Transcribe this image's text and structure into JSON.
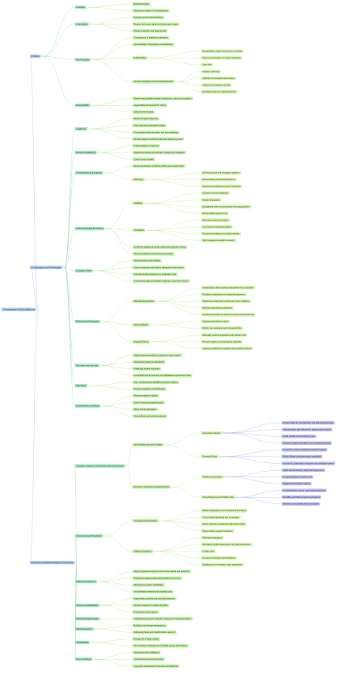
{
  "root": {
    "label": "Understanding Artificial Intelligence",
    "children": [
      {
        "label": "AI Ethics",
        "children": [
          {
            "label": "Overview",
            "children": [
              {
                "label": "Ethical principles"
              },
              {
                "label": "Why ethics matters in AI development"
              }
            ]
          },
          {
            "label": "Core Values",
            "children": [
              {
                "label": "Fairness and non-discrimination"
              },
              {
                "label": "Respect for human rights and democratic values"
              },
              {
                "label": "Privacy protection and data security"
              }
            ]
          },
          {
            "label": "Key Principles",
            "children": [
              {
                "label": "Transparency in algorithmic decisions"
              },
              {
                "label": "Accountability of developers and deployers"
              },
              {
                "label": "Explainability",
                "children": [
                  {
                    "label": "Interpretable models and post-hoc methods"
                  },
                  {
                    "label": "Clear communication of system limitations"
                  },
                  {
                    "label": "User trust"
                  }
                ]
              },
              {
                "label": "Human Oversight and Control Mechanisms",
                "children": [
                  {
                    "label": "Human in the loop"
                  },
                  {
                    "label": "Override and shutdown procedures"
                  },
                  {
                    "label": "Audits and compliance checks"
                  },
                  {
                    "label": "Escalation paths for critical decisions"
                  }
                ]
              }
            ]
          },
          {
            "label": "Responsibility",
            "children": [
              {
                "label": "Shared responsibility between developers, users and regulators"
              },
              {
                "label": "Legal liability frameworks for harms"
              },
              {
                "label": "Ethical review boards"
              }
            ]
          }
        ]
      },
      {
        "label": "AI Applications and Technologies",
        "children": [
          {
            "label": "Healthcare",
            "children": [
              {
                "label": "Medical imaging diagnosis"
              },
              {
                "label": "Drug discovery and protein folding"
              },
              {
                "label": "Personalized treatment plans and care pathways"
              },
              {
                "label": "Remote patient monitoring and early warning systems"
              }
            ]
          },
          {
            "label": "Finance and Banking",
            "children": [
              {
                "label": "Fraud detection in real time"
              },
              {
                "label": "Algorithmic trading and portfolio management strategies"
              },
              {
                "label": "Credit scoring models"
              }
            ]
          },
          {
            "label": "Transportation and Logistics",
            "children": [
              {
                "label": "Route optimization for delivery fleets and supply chains"
              },
              {
                "label": "Autonomy",
                "children": [
                  {
                    "label": "Self-driving cars and perception systems"
                  },
                  {
                    "label": "Drone delivery and aerial inspection"
                  },
                  {
                    "label": "Autonomous shipping and port operations"
                  }
                ]
              }
            ]
          },
          {
            "label": "Natural Language Processing",
            "children": [
              {
                "label": "Chatbots",
                "children": [
                  {
                    "label": "Customer service assistants"
                  },
                  {
                    "label": "Virtual companions"
                  },
                  {
                    "label": "Educational tutors and interactive learning platforms"
                  },
                  {
                    "label": "Mental health support tools"
                  }
                ]
              },
              {
                "label": "Translation",
                "children": [
                  {
                    "label": "Real-time speech translation"
                  },
                  {
                    "label": "Low-resource language support"
                  },
                  {
                    "label": "Document localization for global markets"
                  },
                  {
                    "label": "Sign language recognition research"
                  }
                ]
              },
              {
                "label": "Sentiment analysis of social media and customer reviews"
              },
              {
                "label": "Text summarization and content generation"
              }
            ]
          },
          {
            "label": "Computer Vision",
            "children": [
              {
                "label": "Object detection and tracking"
              },
              {
                "label": "Facial recognition with privacy safeguards and consent"
              },
              {
                "label": "Industrial quality inspection on production lines"
              },
              {
                "label": "Augmented reality and spatial mapping in consumer devices"
              }
            ]
          },
          {
            "label": "Robotics and Automation",
            "children": [
              {
                "label": "Manufacturing Robots",
                "children": [
                  {
                    "label": "Collaborative robots working alongside human operators"
                  },
                  {
                    "label": "Predictive maintenance of industrial equipment"
                  },
                  {
                    "label": "Warehouse picking and sorting with vision guidance"
                  },
                  {
                    "label": "Welding and painting automation"
                  },
                  {
                    "label": "Precision assembly of electronics and small components"
                  }
                ]
              },
              {
                "label": "Service Robots",
                "children": [
                  {
                    "label": "Cleaning and delivery robots"
                  },
                  {
                    "label": "Elderly care assistants and companionship"
                  }
                ]
              },
              {
                "label": "Surgical Robots",
                "children": [
                  {
                    "label": "Minimally invasive procedures with robotic arms"
                  },
                  {
                    "label": "Remote surgery over high-speed networks"
                  },
                  {
                    "label": "Training simulators for surgeons and medical students"
                  }
                ]
              }
            ]
          },
          {
            "label": "Education and Learning",
            "children": [
              {
                "label": "Adaptive learning platforms tailored to each student"
              },
              {
                "label": "Automated grading and feedback"
              },
              {
                "label": "Predicting student outcomes"
              },
              {
                "label": "Accessible tools for learners with disabilities and diverse needs"
              }
            ]
          },
          {
            "label": "Agriculture",
            "children": [
              {
                "label": "Crop monitoring with satellite and drone imagery"
              },
              {
                "label": "Precision irrigation and fertilization"
              }
            ]
          },
          {
            "label": "Entertainment and Media",
            "children": [
              {
                "label": "Recommendation engines"
              },
              {
                "label": "Game AI and procedural content"
              },
              {
                "label": "Music and art generation"
              },
              {
                "label": "Visual effects and virtual production"
              }
            ]
          }
        ]
      },
      {
        "label": "The Future of Artificial Intelligence and Society",
        "children": [
          {
            "label": "Long-term Impact on Employment and the Economy",
            "children": [
              {
                "label": "Job Displacement and Creation",
                "children": [
                  {
                    "label": "Automation Sectors",
                    "children": [
                      {
                        "label": "Routine tasks in manufacturing and administrative work"
                      },
                      {
                        "label": "Transportation jobs affected by autonomous vehicles"
                      },
                      {
                        "label": "Retail checkout and inventory roles"
                      },
                      {
                        "label": "Customer support handled by conversational agents"
                      }
                    ]
                  },
                  {
                    "label": "Emerging Roles",
                    "children": [
                      {
                        "label": "AI trainers, prompt engineers and data curators"
                      },
                      {
                        "label": "Ethics officers and governance specialists"
                      },
                      {
                        "label": "Human-AI collaboration designers and workflow experts"
                      }
                    ]
                  }
                ]
              },
              {
                "label": "Economic Inequality and Redistribution",
                "children": [
                  {
                    "label": "Wealth Concentration",
                    "children": [
                      {
                        "label": "Gains accumulating in large technology firms"
                      },
                      {
                        "label": "Regional divides in access to AI"
                      },
                      {
                        "label": "Digital divide between nations"
                      }
                    ]
                  },
                  {
                    "label": "Policy Responses and Safety Nets",
                    "children": [
                      {
                        "label": "Universal basic income experiments and pilots"
                      },
                      {
                        "label": "Reskilling and lifelong learning programs"
                      },
                      {
                        "label": "Taxation of automated labor and capital"
                      }
                    ]
                  }
                ]
              }
            ]
          },
          {
            "label": "Governance and Regulation",
            "children": [
              {
                "label": "International Frameworks",
                "children": [
                  {
                    "label": "Global cooperation on AI standards and treaties"
                  },
                  {
                    "label": "Cross-border data flows and sovereignty"
                  },
                  {
                    "label": "Export controls on advanced chips and models"
                  },
                  {
                    "label": "Shared safety research initiatives"
                  }
                ]
              },
              {
                "label": "National Legislation",
                "children": [
                  {
                    "label": "Risk-based regulation"
                  },
                  {
                    "label": "Mandatory impact assessments for high-risk systems"
                  },
                  {
                    "label": "Liability rules"
                  },
                  {
                    "label": "Consumer protection and disclosure"
                  },
                  {
                    "label": "Sandboxes for innovation under supervision"
                  }
                ]
              }
            ]
          },
          {
            "label": "Safety and Alignment",
            "children": [
              {
                "label": "Aligning advanced systems with human values and intentions"
              },
              {
                "label": "Robustness against adversarial attacks and misuse"
              },
              {
                "label": "Monitoring emergent capabilities"
              },
              {
                "label": "Interpretability research and auditing tools"
              }
            ]
          },
          {
            "label": "Human-AI Collaboration",
            "children": [
              {
                "label": "Augmenting creativity and scientific discovery"
              },
              {
                "label": "Decision support in complex domains"
              },
              {
                "label": "Preserving human agency"
              }
            ]
          },
          {
            "label": "Scientific Breakthroughs",
            "children": [
              {
                "label": "Accelerating research in physics, biology and materials science"
              }
            ]
          },
          {
            "label": "Public Perception",
            "children": [
              {
                "label": "Building trust through transparency"
              },
              {
                "label": "Addressing fears and misinformation about AI"
              }
            ]
          },
          {
            "label": "Sustainability",
            "children": [
              {
                "label": "Energy use of large models"
              },
              {
                "label": "AI for climate modeling and renewable energy optimization"
              }
            ]
          },
          {
            "label": "Open Questions",
            "children": [
              {
                "label": "Artificial general intelligence"
              },
              {
                "label": "Consciousness and moral status"
              },
              {
                "label": "Long-term coexistence of humans and machines"
              }
            ]
          }
        ]
      }
    ]
  }
}
